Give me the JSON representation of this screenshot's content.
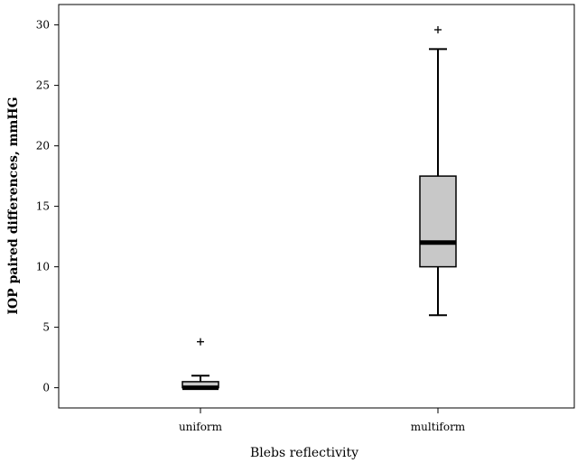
{
  "chart_data": {
    "type": "boxplot",
    "xlabel": "Blebs reflectivity",
    "ylabel": "IOP paired differences, mmHG",
    "ylim": [
      -1.5,
      31.5
    ],
    "yticks": [
      0,
      5,
      10,
      15,
      20,
      25,
      30
    ],
    "categories": [
      "uniform",
      "multiform"
    ],
    "boxes": [
      {
        "category": "uniform",
        "whisker_low": 0,
        "q1": 0,
        "median": 0,
        "q3": 0.5,
        "whisker_high": 1,
        "outliers": [
          3.8
        ]
      },
      {
        "category": "multiform",
        "whisker_low": 6,
        "q1": 10,
        "median": 12,
        "q3": 17.5,
        "whisker_high": 28,
        "outliers": [
          29.6
        ]
      }
    ],
    "grid": false,
    "box_color": "#c8c8c8"
  }
}
